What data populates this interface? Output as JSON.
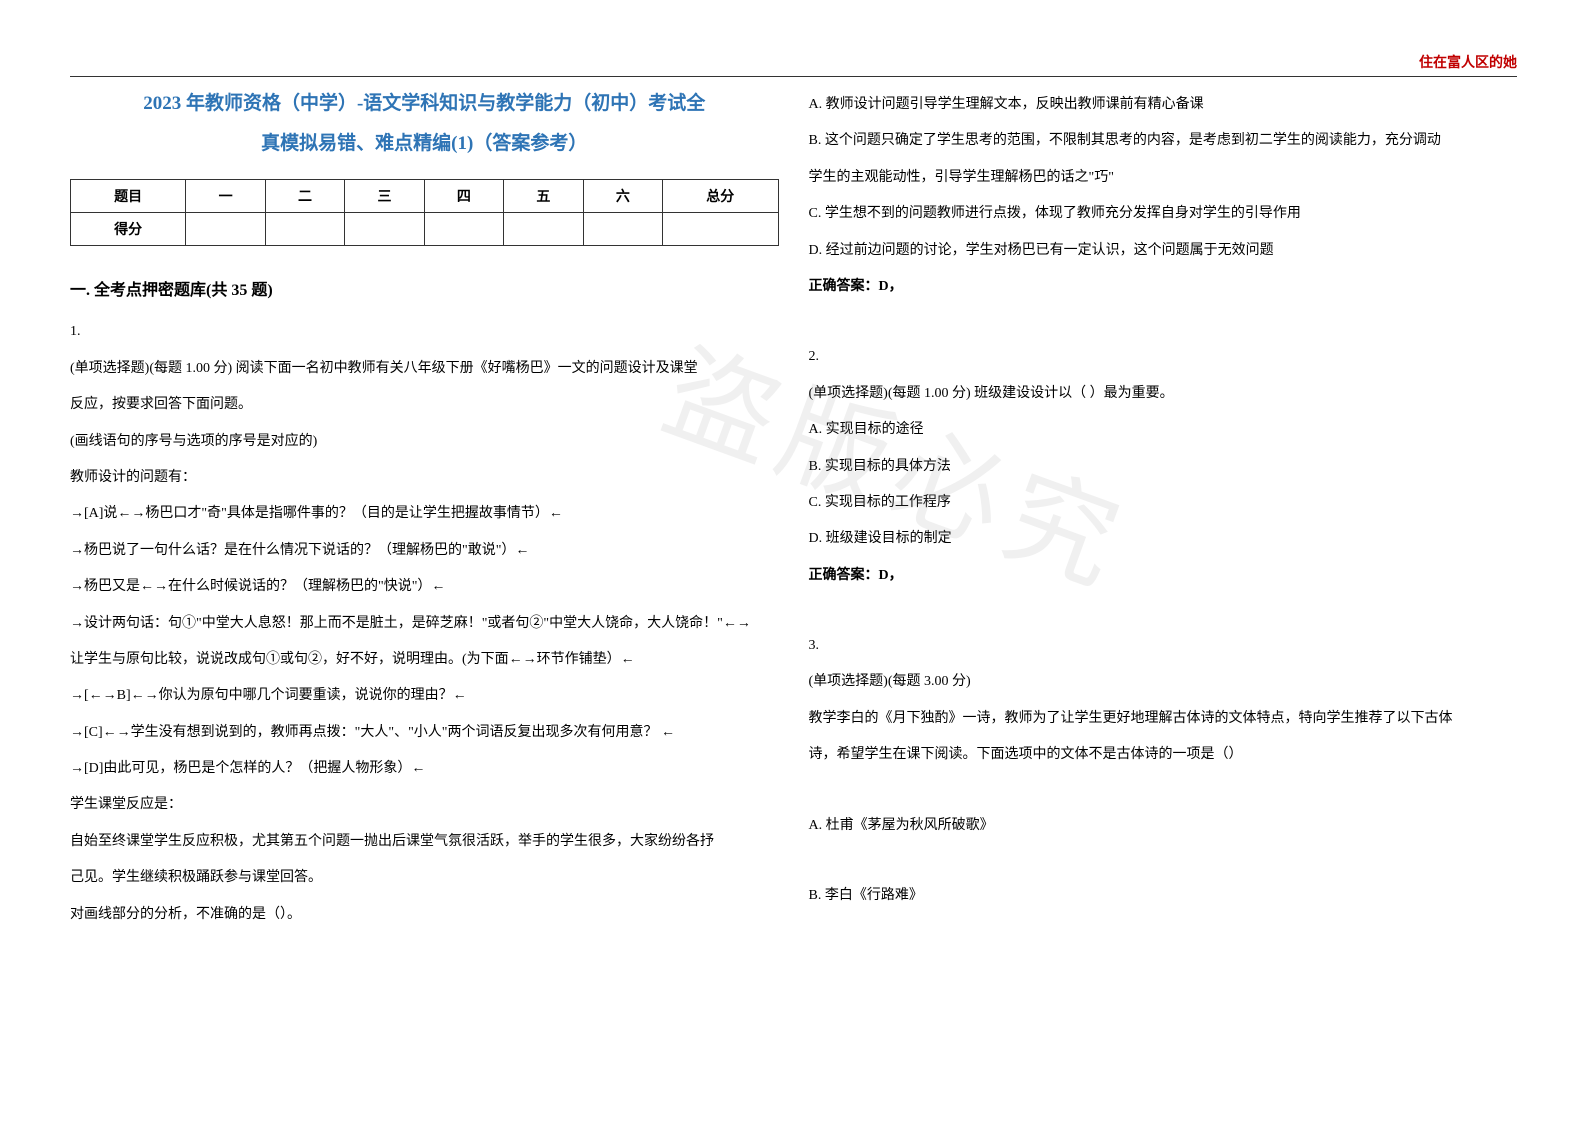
{
  "watermark_text": "住在富人区的她",
  "background_watermark": "盗版必究",
  "title_line1": "2023 年教师资格（中学）-语文学科知识与教学能力（初中）考试全",
  "title_line2": "真模拟易错、难点精编(1)（答案参考）",
  "score_table": {
    "headers": [
      "题目",
      "一",
      "二",
      "三",
      "四",
      "五",
      "六",
      "总分"
    ],
    "row_label": "得分"
  },
  "section_heading": "一. 全考点押密题库(共 35 题)",
  "left_column": {
    "q1_number": "1.",
    "q1_stem": "(单项选择题)(每题 1.00 分) 阅读下面一名初中教师有关八年级下册《好嘴杨巴》一文的问题设计及课堂",
    "q1_l2": "反应，按要求回答下面问题。",
    "q1_l3": "(画线语句的序号与选项的序号是对应的)",
    "q1_l4": "教师设计的问题有：",
    "q1_l5": "→[A]说←→杨巴口才\"奇\"具体是指哪件事的？（目的是让学生把握故事情节）←",
    "q1_l6": "→杨巴说了一句什么话？是在什么情况下说话的？（理解杨巴的\"敢说\"）←",
    "q1_l7": "→杨巴又是←→在什么时候说话的？（理解杨巴的\"快说\"）←",
    "q1_l8": "→设计两句话：句①\"中堂大人息怒！那上而不是脏土，是碎芝麻！\"或者句②\"中堂大人饶命，大人饶命！\"←→",
    "q1_l9": "让学生与原句比较，说说改成句①或句②，好不好，说明理由。(为下面←→环节作铺垫）←",
    "q1_l10": "→[←→B]←→你认为原句中哪几个词要重读，说说你的理由？←",
    "q1_l11": "→[C]←→学生没有想到说到的，教师再点拨：\"大人\"、\"小人\"两个词语反复出现多次有何用意？ ←",
    "q1_l12": "→[D]由此可见，杨巴是个怎样的人？（把握人物形象）←",
    "q1_l13": "学生课堂反应是：",
    "q1_l14": "自始至终课堂学生反应积极，尤其第五个问题一抛出后课堂气氛很活跃，举手的学生很多，大家纷纷各抒",
    "q1_l15": "己见。学生继续积极踊跃参与课堂回答。",
    "q1_l16": "对画线部分的分析，不准确的是（）。"
  },
  "right_column": {
    "q1_optA": "A. 教师设计问题引导学生理解文本，反映出教师课前有精心备课",
    "q1_optB_l1": "B. 这个问题只确定了学生思考的范围，不限制其思考的内容，是考虑到初二学生的阅读能力，充分调动",
    "q1_optB_l2": "学生的主观能动性，引导学生理解杨巴的话之\"巧\"",
    "q1_optC": "C. 学生想不到的问题教师进行点拨，体现了教师充分发挥自身对学生的引导作用",
    "q1_optD": "D. 经过前边问题的讨论，学生对杨巴已有一定认识，这个问题属于无效问题",
    "q1_answer_label": "正确答案：",
    "q1_answer_val": "D，",
    "q2_number": "2.",
    "q2_stem": "(单项选择题)(每题 1.00 分) 班级建设设计以（ ）最为重要。",
    "q2_optA": "A. 实现目标的途径",
    "q2_optB": "B. 实现目标的具体方法",
    "q2_optC": "C. 实现目标的工作程序",
    "q2_optD": "D. 班级建设目标的制定",
    "q2_answer_label": "正确答案：",
    "q2_answer_val": "D，",
    "q3_number": "3.",
    "q3_stem": "(单项选择题)(每题 3.00 分)",
    "q3_l2": "教学李白的《月下独酌》一诗，教师为了让学生更好地理解古体诗的文体特点，特向学生推荐了以下古体",
    "q3_l3": "诗，希望学生在课下阅读。下面选项中的文体不是古体诗的一项是（）",
    "q3_optA": "A. 杜甫《茅屋为秋风所破歌》",
    "q3_optB": "B. 李白《行路难》"
  }
}
